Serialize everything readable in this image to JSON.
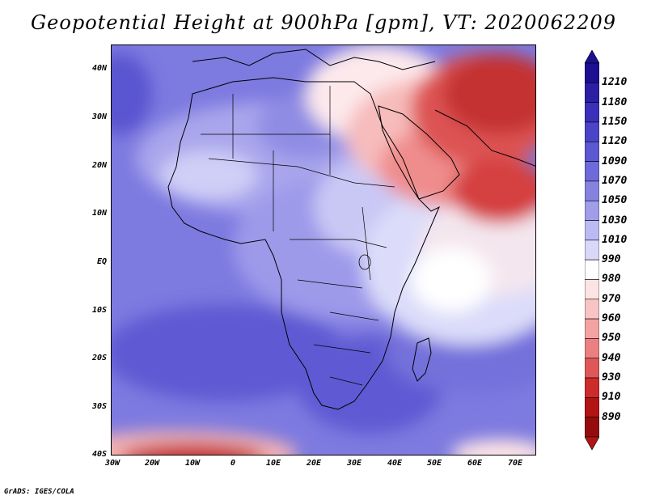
{
  "title": "Geopotential Height at 900hPa [gpm], VT: 2020062209",
  "credit": "GrADS: IGES/COLA",
  "map": {
    "lat_labels": [
      "40N",
      "30N",
      "20N",
      "10N",
      "EQ",
      "10S",
      "20S",
      "30S",
      "40S"
    ],
    "lon_labels": [
      "30W",
      "20W",
      "10W",
      "0",
      "10E",
      "20E",
      "30E",
      "40E",
      "50E",
      "60E",
      "70E"
    ]
  },
  "colorbar": {
    "labels": [
      "1210",
      "1180",
      "1150",
      "1120",
      "1090",
      "1070",
      "1050",
      "1030",
      "1010",
      "990",
      "980",
      "970",
      "960",
      "950",
      "940",
      "930",
      "910",
      "890"
    ],
    "colors": [
      "#1c0f91",
      "#2b20a5",
      "#3a30ba",
      "#4a44c8",
      "#5c58d2",
      "#6d6ad9",
      "#8683e0",
      "#a09eea",
      "#bbbaf2",
      "#d8d8fa",
      "#ffffff",
      "#fce4e4",
      "#f8c4c4",
      "#f3a3a3",
      "#ec8080",
      "#e05757",
      "#cc2c2c",
      "#b21414",
      "#960c0c"
    ],
    "min_arrow_color": "#b21414",
    "max_arrow_color": "#1c0f91"
  }
}
